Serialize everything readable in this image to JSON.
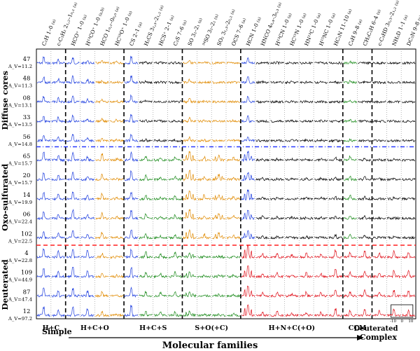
{
  "chart_data": {
    "type": "line",
    "title": "",
    "xlabel": "Molecular families",
    "axis_left_label": "Simple",
    "axis_right_label": "Complex",
    "axis_right_prefix": "Deuterated",
    "colors": {
      "plain": "#000000",
      "hc": "#1f3fdf",
      "hco": "#e08a00",
      "hcs": "#1a8a1a",
      "deut": "#e0101a",
      "blue_line": "#2a3cff",
      "red_line": "#ff2020"
    },
    "molecules": [
      {
        "label": "C₂H 1–0",
        "sub": "(a)"
      },
      {
        "label": "c-C₃H₂ 2₁,₂–1₀,₁",
        "sub": "(a)"
      },
      {
        "label": "HCO⁺ 1–0",
        "sub": "(a)"
      },
      {
        "label": "H¹³CO⁺ 1–0",
        "sub": "(a,b)"
      },
      {
        "label": "HCO 1₀,₁–0₀,₀",
        "sub": "(a)"
      },
      {
        "label": "HC¹⁸O⁺ 1–0",
        "sub": "(a)"
      },
      {
        "label": "CS 2–1",
        "sub": "(a)"
      },
      {
        "label": "H₂CS 3₁,₃–2₁,₂",
        "sub": "(a)"
      },
      {
        "label": "HCS⁺ 2–1",
        "sub": "(a)"
      },
      {
        "label": "C₃S 7–6",
        "sub": "(a)"
      },
      {
        "label": "SO 3₂–2₁",
        "sub": "(a)"
      },
      {
        "label": "³⁴SO 3₂–2₁",
        "sub": "(a)"
      },
      {
        "label": "SO₂ 3₁,₃–2₀,₂",
        "sub": "(a)"
      },
      {
        "label": "OCS 7–6",
        "sub": "(a)"
      },
      {
        "label": "HCN 1–0",
        "sub": "(a)"
      },
      {
        "label": "HNCO 4₀,₄–3₀,₃",
        "sub": "(a)"
      },
      {
        "label": "H¹³CN 1–0",
        "sub": "(a)"
      },
      {
        "label": "HC¹⁵N 1–0",
        "sub": "(a)"
      },
      {
        "label": "HN¹³C 1–0",
        "sub": "(a)"
      },
      {
        "label": "H¹⁵NC 1–0",
        "sub": "(a)"
      },
      {
        "label": "HC₃N 11–10",
        "sub": "(a)"
      },
      {
        "label": "C₄H 9–8",
        "sub": "(a)"
      },
      {
        "label": "CH₃C₂H 6–4",
        "sub": "(a)"
      },
      {
        "label": "c-C₃HD 3₀,₃–2₁,₂",
        "sub": "(a)"
      },
      {
        "label": "NH₂D 1–1",
        "sub": "(a)"
      },
      {
        "label": "DC₃N 9–8",
        "sub": "(a)"
      }
    ],
    "families": [
      "H+C",
      "H+C+O",
      "H+C+S",
      "S+O(+C)",
      "H+N+C(+O)",
      "CCM",
      "Deuterated"
    ],
    "groups": [
      {
        "name": "Diffuse cores",
        "rows": [
          {
            "id": "47",
            "av": "A_V=11.2",
            "kind": "diffuse"
          },
          {
            "id": "48",
            "av": "A_V=11.3",
            "kind": "diffuse"
          },
          {
            "id": "08",
            "av": "A_V=13.1",
            "kind": "diffuse"
          },
          {
            "id": "33",
            "av": "A_V=13.5",
            "kind": "diffuse"
          },
          {
            "id": "56",
            "av": "A_V=14.8",
            "kind": "diffuse"
          }
        ]
      },
      {
        "name": "Oxo-sulfurated",
        "rows": [
          {
            "id": "65",
            "av": "A_V=15.7",
            "kind": "oxo"
          },
          {
            "id": "20",
            "av": "A_V=15.7",
            "kind": "oxo"
          },
          {
            "id": "14",
            "av": "A_V=19.9",
            "kind": "oxo"
          },
          {
            "id": "06",
            "av": "A_V=22.4",
            "kind": "oxo"
          },
          {
            "id": "102",
            "av": "A_V=22.5",
            "kind": "oxo"
          }
        ]
      },
      {
        "name": "Deuterated",
        "rows": [
          {
            "id": "4",
            "av": "A_V=22.8",
            "kind": "deut"
          },
          {
            "id": "109",
            "av": "A_V=44.9",
            "kind": "deut"
          },
          {
            "id": "87",
            "av": "A_V=47.4",
            "kind": "deut"
          },
          {
            "id": "12",
            "av": "A_V=97.2",
            "kind": "deut"
          }
        ]
      }
    ],
    "inset": {
      "ticks": [
        "-10",
        "0",
        "10"
      ]
    }
  }
}
